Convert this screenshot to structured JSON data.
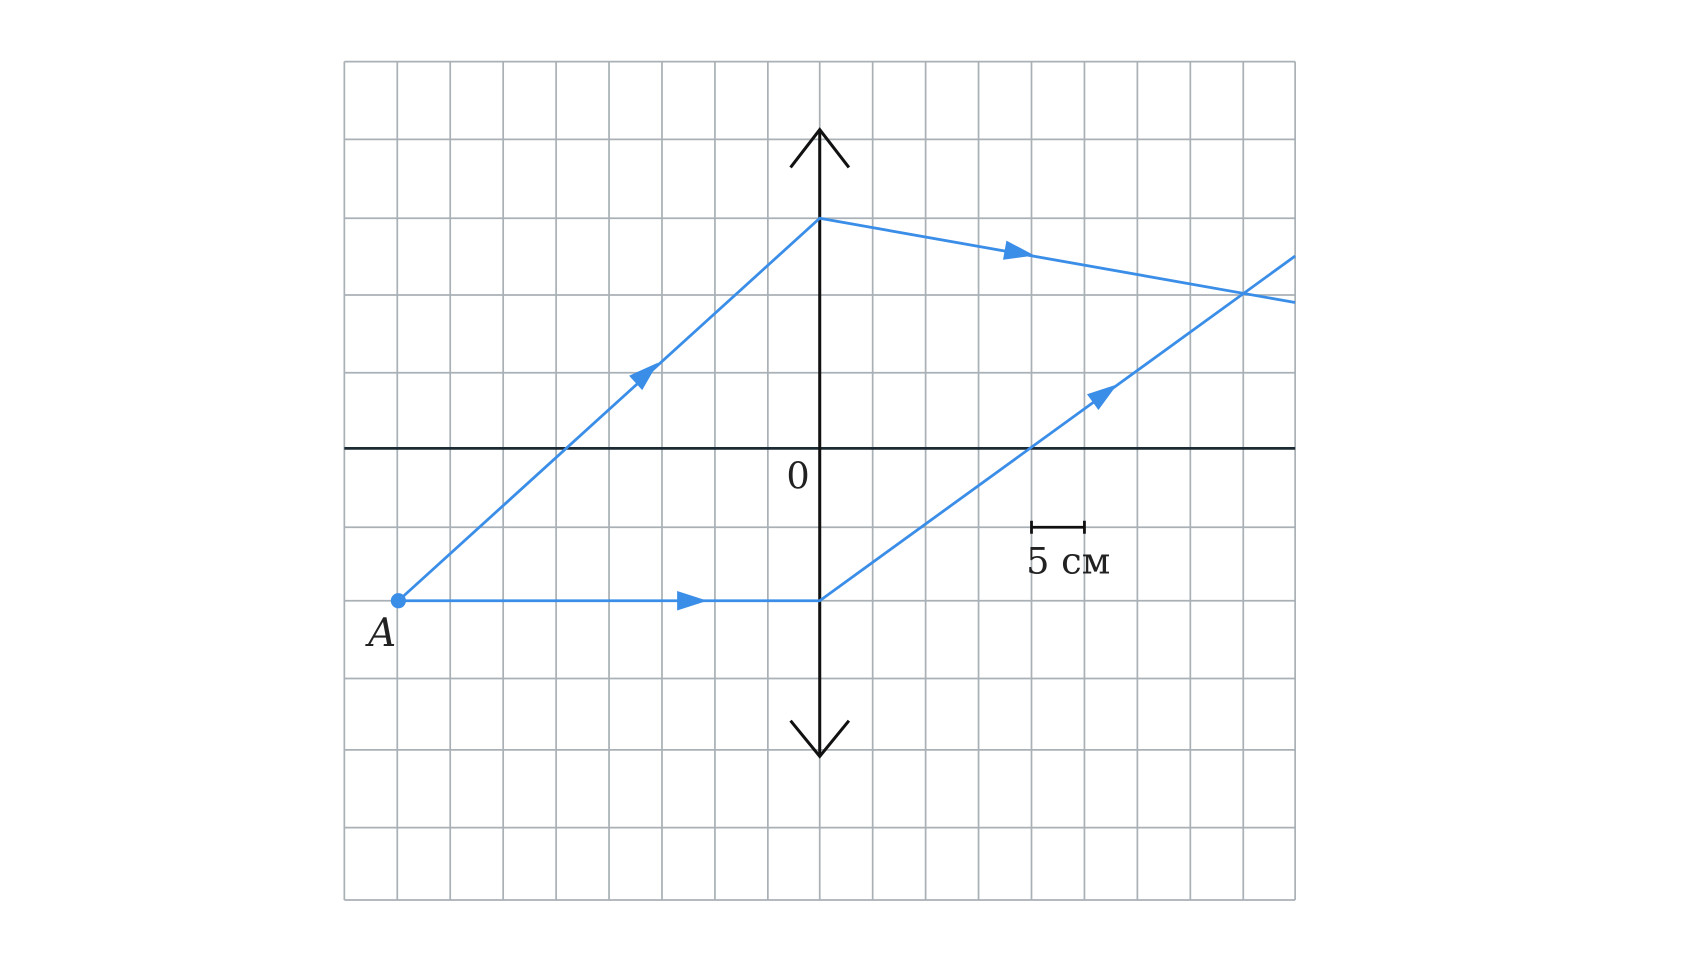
{
  "labels": {
    "origin": "0",
    "scale": "5 см",
    "point": "A"
  }
}
